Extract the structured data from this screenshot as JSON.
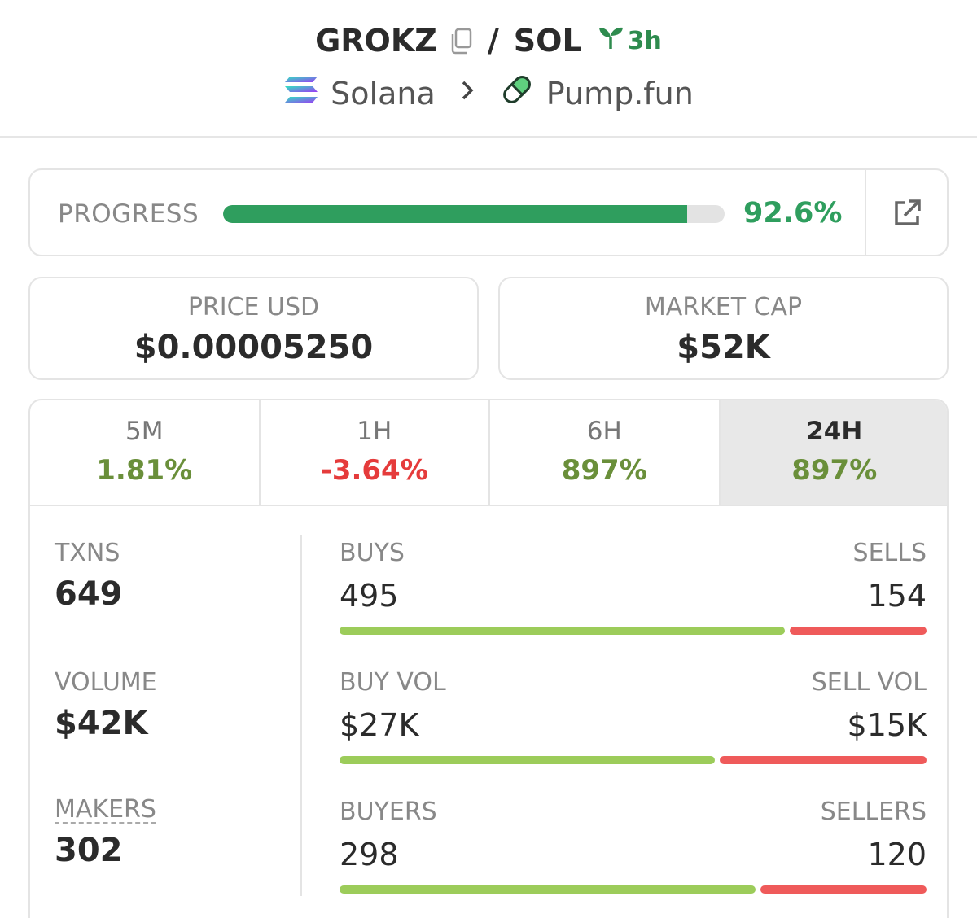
{
  "header": {
    "base_symbol": "GROKZ",
    "separator": "/",
    "quote_symbol": "SOL",
    "age": "3h",
    "chain": "Solana",
    "dex": "Pump.fun"
  },
  "progress": {
    "label": "PROGRESS",
    "value_text": "92.6%",
    "fraction": 0.926
  },
  "stats": {
    "price_label": "PRICE USD",
    "price_value": "$0.00005250",
    "mcap_label": "MARKET CAP",
    "mcap_value": "$52K"
  },
  "timeframes": [
    {
      "label": "5M",
      "change": "1.81%",
      "direction": "up",
      "active": false
    },
    {
      "label": "1H",
      "change": "-3.64%",
      "direction": "down",
      "active": false
    },
    {
      "label": "6H",
      "change": "897%",
      "direction": "up",
      "active": false
    },
    {
      "label": "24H",
      "change": "897%",
      "direction": "up",
      "active": true
    }
  ],
  "metrics": {
    "txns_label": "TXNS",
    "txns_value": "649",
    "volume_label": "VOLUME",
    "volume_value": "$42K",
    "makers_label": "MAKERS",
    "makers_value": "302"
  },
  "splits": {
    "buys_label": "BUYS",
    "buys_value": "495",
    "sells_label": "SELLS",
    "sells_value": "154",
    "buys_fraction": 0.763,
    "buyvol_label": "BUY VOL",
    "buyvol_value": "$27K",
    "sellvol_label": "SELL VOL",
    "sellvol_value": "$15K",
    "buyvol_fraction": 0.643,
    "buyers_label": "BUYERS",
    "buyers_value": "298",
    "sellers_label": "SELLERS",
    "sellers_value": "120",
    "buyers_fraction": 0.713
  },
  "colors": {
    "progress": "#2f9e5e",
    "positive": "#6a8f3a",
    "negative": "#e53b3b",
    "buy_bar": "#9ccc5a",
    "sell_bar": "#ef5a5a"
  },
  "icons": [
    "copy-icon",
    "sprout-icon",
    "solana-icon",
    "chevron-right-icon",
    "pill-icon",
    "external-link-icon"
  ]
}
